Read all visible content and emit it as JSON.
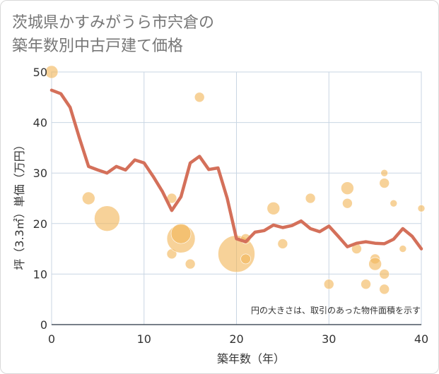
{
  "chart_data": {
    "type": "scatter+line",
    "title_lines": [
      "茨城県かすみがうら市宍倉の",
      "築年数別中古戸建て価格"
    ],
    "xlabel": "築年数（年）",
    "ylabel": "坪（3.3㎡）単価（万円）",
    "xlim": [
      0,
      40
    ],
    "ylim": [
      0,
      50
    ],
    "x_ticks": [
      "0",
      "10",
      "20",
      "30",
      "40"
    ],
    "y_ticks": [
      "0",
      "10",
      "20",
      "30",
      "40",
      "50"
    ],
    "grid": true,
    "note": "円の大きさは、取引のあった物件面積を示す",
    "colors": {
      "line": "#d4705a",
      "bubble": "#f2b75a",
      "grid": "#c9d6e3",
      "plot_border": "#b7c3cf"
    },
    "line_series": {
      "name": "average",
      "x": [
        0,
        1,
        2,
        3,
        4,
        5,
        6,
        7,
        8,
        9,
        10,
        11,
        12,
        13,
        14,
        15,
        16,
        17,
        18,
        19,
        20,
        21,
        22,
        23,
        24,
        25,
        26,
        27,
        28,
        29,
        30,
        31,
        32,
        33,
        34,
        35,
        36,
        37,
        38,
        39,
        40
      ],
      "y": [
        46.4,
        45.7,
        43.0,
        37.0,
        31.3,
        30.6,
        30.0,
        31.3,
        30.6,
        32.6,
        32.0,
        29.3,
        26.3,
        22.6,
        25.3,
        32.0,
        33.3,
        30.7,
        31.0,
        25.0,
        17.0,
        16.4,
        18.3,
        18.6,
        19.7,
        19.2,
        19.6,
        20.5,
        19.0,
        18.4,
        19.5,
        17.5,
        15.4,
        16.1,
        16.4,
        16.1,
        16.0,
        16.9,
        19.0,
        17.5,
        15.0
      ]
    },
    "bubbles": [
      {
        "x": 0,
        "y": 50,
        "size": "small"
      },
      {
        "x": 4,
        "y": 25,
        "size": "small"
      },
      {
        "x": 6,
        "y": 21,
        "size": "large"
      },
      {
        "x": 13,
        "y": 25,
        "size": "tiny"
      },
      {
        "x": 13,
        "y": 14,
        "size": "tiny"
      },
      {
        "x": 14,
        "y": 17,
        "size": "xlarge"
      },
      {
        "x": 14,
        "y": 18,
        "size": "medium"
      },
      {
        "x": 15,
        "y": 12,
        "size": "tiny"
      },
      {
        "x": 16,
        "y": 45,
        "size": "tiny"
      },
      {
        "x": 20,
        "y": 14,
        "size": "xxlarge"
      },
      {
        "x": 21,
        "y": 13,
        "size": "tiny"
      },
      {
        "x": 21,
        "y": 17,
        "size": "tiny"
      },
      {
        "x": 24,
        "y": 23,
        "size": "small"
      },
      {
        "x": 25,
        "y": 16,
        "size": "tiny"
      },
      {
        "x": 28,
        "y": 25,
        "size": "tiny"
      },
      {
        "x": 30,
        "y": 8,
        "size": "tiny"
      },
      {
        "x": 32,
        "y": 27,
        "size": "small"
      },
      {
        "x": 32,
        "y": 24,
        "size": "tiny"
      },
      {
        "x": 33,
        "y": 15,
        "size": "tiny"
      },
      {
        "x": 34,
        "y": 8,
        "size": "tiny"
      },
      {
        "x": 35,
        "y": 13,
        "size": "tiny"
      },
      {
        "x": 35,
        "y": 12,
        "size": "small"
      },
      {
        "x": 36,
        "y": 30,
        "size": "xtiny"
      },
      {
        "x": 36,
        "y": 28,
        "size": "tiny"
      },
      {
        "x": 36,
        "y": 10,
        "size": "tiny"
      },
      {
        "x": 36,
        "y": 7,
        "size": "tiny"
      },
      {
        "x": 37,
        "y": 24,
        "size": "xtiny"
      },
      {
        "x": 38,
        "y": 15,
        "size": "xtiny"
      },
      {
        "x": 40,
        "y": 23,
        "size": "xtiny"
      }
    ]
  }
}
